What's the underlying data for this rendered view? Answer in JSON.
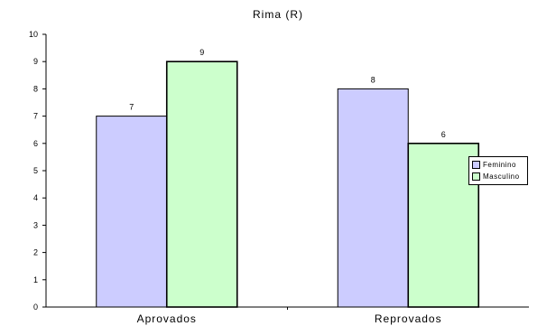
{
  "chart_data": {
    "type": "bar",
    "title": "Rima (R)",
    "categories": [
      "Aprovados",
      "Reprovados"
    ],
    "series": [
      {
        "name": "Feminino",
        "values": [
          7,
          8
        ],
        "color": "#ccccff"
      },
      {
        "name": "Masculino",
        "values": [
          9,
          6
        ],
        "color": "#ccffcc"
      }
    ],
    "ylim": [
      0,
      10
    ],
    "yticks": [
      0,
      1,
      2,
      3,
      4,
      5,
      6,
      7,
      8,
      9,
      10
    ],
    "grid": false,
    "legend_position": "right"
  }
}
